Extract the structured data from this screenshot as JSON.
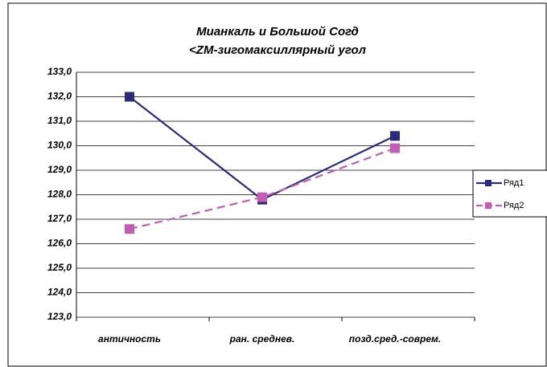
{
  "chart_data": {
    "type": "line",
    "title": [
      "Мианкаль и Большой Согд",
      "<ZM-зигомаксиллярный угол"
    ],
    "categories": [
      "античность",
      "ран. среднев.",
      "позд.сред.-соврем."
    ],
    "series": [
      {
        "name": "Ряд1",
        "color": "#2b2b7e",
        "line_style": "solid",
        "values": [
          132.0,
          127.8,
          130.4
        ]
      },
      {
        "name": "Ряд2",
        "color": "#c25cb4",
        "line_style": "dashed",
        "values": [
          126.6,
          127.9,
          129.9
        ]
      }
    ],
    "ylim": [
      123,
      133
    ],
    "yticks": [
      {
        "value": 123,
        "label": "123,0"
      },
      {
        "value": 124,
        "label": "124,0"
      },
      {
        "value": 125,
        "label": "125,0"
      },
      {
        "value": 126,
        "label": "126,0"
      },
      {
        "value": 127,
        "label": "127,0"
      },
      {
        "value": 128,
        "label": "128,0"
      },
      {
        "value": 129,
        "label": "129,0"
      },
      {
        "value": 130,
        "label": "130,0"
      },
      {
        "value": 131,
        "label": "131,0"
      },
      {
        "value": 132,
        "label": "132,0"
      },
      {
        "value": 133,
        "label": "133,0"
      }
    ],
    "grid": true,
    "legend": "right"
  }
}
